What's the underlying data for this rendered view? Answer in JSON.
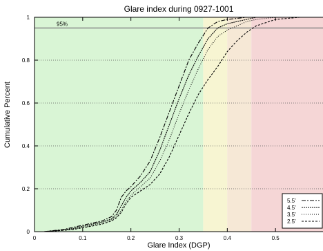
{
  "chart_data": {
    "type": "line",
    "title": "Glare index during 0927-1001",
    "xlabel": "Glare Index (DGP)",
    "ylabel": "Cumulative Percent",
    "xlim": [
      0,
      0.6
    ],
    "ylim": [
      0,
      1
    ],
    "x_ticks": [
      "0",
      "0.1",
      "0.2",
      "0.3",
      "0.4",
      "0.5"
    ],
    "y_ticks": [
      "0",
      "0.2",
      "0.4",
      "0.6",
      "0.8",
      "1"
    ],
    "grid": "horizontal dotted",
    "legend_position": "bottom-right",
    "reference_line": {
      "y": 0.95,
      "label": "95%",
      "color": "#888888"
    },
    "bands": [
      {
        "from": 0.0,
        "to": 0.35,
        "color": "#d9f5d5"
      },
      {
        "from": 0.35,
        "to": 0.4,
        "color": "#f7f5d2"
      },
      {
        "from": 0.4,
        "to": 0.45,
        "color": "#f6e8d6"
      },
      {
        "from": 0.45,
        "to": 0.6,
        "color": "#f5d6d6"
      }
    ],
    "series": [
      {
        "name": "5.5'",
        "dash": "6,2,2,2",
        "x": [
          0.02,
          0.04,
          0.06,
          0.08,
          0.1,
          0.12,
          0.14,
          0.16,
          0.17,
          0.18,
          0.19,
          0.2,
          0.22,
          0.24,
          0.26,
          0.28,
          0.3,
          0.32,
          0.34,
          0.36,
          0.38,
          0.4,
          0.42,
          0.44,
          0.46,
          0.5,
          0.55,
          0.6
        ],
        "y": [
          0.0,
          0.005,
          0.01,
          0.02,
          0.03,
          0.04,
          0.05,
          0.07,
          0.1,
          0.16,
          0.19,
          0.21,
          0.26,
          0.33,
          0.44,
          0.56,
          0.68,
          0.8,
          0.88,
          0.95,
          0.98,
          0.99,
          0.995,
          1.0,
          1.0,
          1.0,
          1.0,
          1.0
        ]
      },
      {
        "name": "4.5'",
        "dash": "2,1",
        "x": [
          0.02,
          0.04,
          0.06,
          0.08,
          0.1,
          0.12,
          0.14,
          0.16,
          0.17,
          0.18,
          0.19,
          0.2,
          0.22,
          0.24,
          0.26,
          0.28,
          0.3,
          0.32,
          0.34,
          0.36,
          0.38,
          0.4,
          0.42,
          0.44,
          0.46,
          0.5,
          0.55,
          0.6
        ],
        "y": [
          0.0,
          0.004,
          0.008,
          0.015,
          0.025,
          0.035,
          0.045,
          0.06,
          0.08,
          0.12,
          0.16,
          0.19,
          0.23,
          0.28,
          0.38,
          0.5,
          0.62,
          0.73,
          0.82,
          0.9,
          0.95,
          0.97,
          0.98,
          0.99,
          1.0,
          1.0,
          1.0,
          1.0
        ]
      },
      {
        "name": "3.5'",
        "dash": "1,2",
        "x": [
          0.02,
          0.04,
          0.06,
          0.08,
          0.1,
          0.12,
          0.14,
          0.16,
          0.17,
          0.18,
          0.19,
          0.2,
          0.22,
          0.24,
          0.26,
          0.28,
          0.3,
          0.32,
          0.34,
          0.36,
          0.38,
          0.4,
          0.42,
          0.44,
          0.46,
          0.5,
          0.55,
          0.6
        ],
        "y": [
          0.0,
          0.003,
          0.007,
          0.012,
          0.02,
          0.03,
          0.04,
          0.055,
          0.07,
          0.1,
          0.14,
          0.17,
          0.21,
          0.25,
          0.33,
          0.43,
          0.55,
          0.66,
          0.76,
          0.85,
          0.91,
          0.94,
          0.96,
          0.98,
          0.99,
          1.0,
          1.0,
          1.0
        ]
      },
      {
        "name": "2.5'",
        "dash": "3,2",
        "x": [
          0.02,
          0.04,
          0.06,
          0.08,
          0.1,
          0.12,
          0.14,
          0.16,
          0.17,
          0.18,
          0.19,
          0.2,
          0.22,
          0.24,
          0.26,
          0.28,
          0.3,
          0.32,
          0.34,
          0.36,
          0.38,
          0.4,
          0.42,
          0.44,
          0.46,
          0.5,
          0.55,
          0.6
        ],
        "y": [
          0.0,
          0.003,
          0.006,
          0.01,
          0.018,
          0.026,
          0.035,
          0.05,
          0.065,
          0.09,
          0.13,
          0.16,
          0.19,
          0.22,
          0.27,
          0.35,
          0.45,
          0.55,
          0.64,
          0.71,
          0.77,
          0.84,
          0.89,
          0.93,
          0.96,
          0.99,
          1.0,
          1.0
        ]
      }
    ]
  }
}
